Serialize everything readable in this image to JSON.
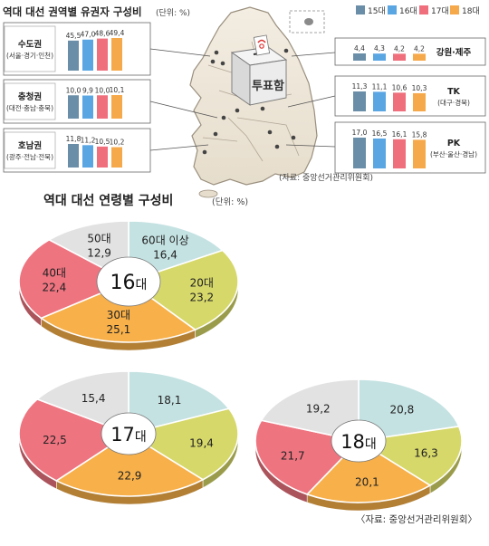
{
  "regional": {
    "title": "역대 대선 권역별 유권자 구성비",
    "unit": "(단위: %)",
    "source": "(자료: 중앙선거관리위원회)",
    "ballot_box_label": "투표함",
    "legend": [
      {
        "label": "15대",
        "color": "#6b8ea8"
      },
      {
        "label": "16대",
        "color": "#5aa6e3"
      },
      {
        "label": "17대",
        "color": "#ef6f7d"
      },
      {
        "label": "18대",
        "color": "#f6a94a"
      }
    ]
  },
  "age": {
    "title": "역대 대선 연령별 구성비",
    "unit": "(단위: %)",
    "source": "〈자료: 중앙선거관리위원회〉",
    "colors": {
      "60": "#c5e2e2",
      "20": "#d6d86a",
      "30": "#f7b04a",
      "40": "#ee7480",
      "50": "#e2e2e2"
    }
  },
  "chart_data": [
    {
      "type": "bar",
      "region": "수도권",
      "sub": "(서울·경기·인천)",
      "categories": [
        "15대",
        "16대",
        "17대",
        "18대"
      ],
      "values": [
        45.5,
        47.0,
        48.6,
        49.4
      ],
      "labels": [
        "45,5",
        "47,0",
        "48,6",
        "49,4"
      ]
    },
    {
      "type": "bar",
      "region": "충청권",
      "sub": "(대전·충남·충북)",
      "categories": [
        "15대",
        "16대",
        "17대",
        "18대"
      ],
      "values": [
        10.0,
        9.9,
        10.0,
        10.1
      ],
      "labels": [
        "10,0",
        "9,9",
        "10,0",
        "10,1"
      ]
    },
    {
      "type": "bar",
      "region": "호남권",
      "sub": "(광주·전남·전북)",
      "categories": [
        "15대",
        "16대",
        "17대",
        "18대"
      ],
      "values": [
        11.8,
        11.2,
        10.5,
        10.2
      ],
      "labels": [
        "11,8",
        "11,2",
        "10,5",
        "10,2"
      ]
    },
    {
      "type": "bar",
      "region": "강원·제주",
      "sub": "",
      "categories": [
        "15대",
        "16대",
        "17대",
        "18대"
      ],
      "values": [
        4.4,
        4.3,
        4.2,
        4.2
      ],
      "labels": [
        "4,4",
        "4,3",
        "4,2",
        "4,2"
      ]
    },
    {
      "type": "bar",
      "region": "TK",
      "sub": "(대구·경북)",
      "categories": [
        "15대",
        "16대",
        "17대",
        "18대"
      ],
      "values": [
        11.3,
        11.1,
        10.6,
        10.3
      ],
      "labels": [
        "11,3",
        "11,1",
        "10,6",
        "10,3"
      ]
    },
    {
      "type": "bar",
      "region": "PK",
      "sub": "(부산·울산·경남)",
      "categories": [
        "15대",
        "16대",
        "17대",
        "18대"
      ],
      "values": [
        17.0,
        16.5,
        16.1,
        15.8
      ],
      "labels": [
        "17,0",
        "16,5",
        "16,1",
        "15,8"
      ]
    },
    {
      "type": "pie",
      "center_num": "16",
      "center_suffix": "대",
      "slices": [
        {
          "key": "60",
          "label": "60대 이상",
          "value": 16.4,
          "text": "16,4"
        },
        {
          "key": "20",
          "label": "20대",
          "value": 23.2,
          "text": "23,2"
        },
        {
          "key": "30",
          "label": "30대",
          "value": 25.1,
          "text": "25,1"
        },
        {
          "key": "40",
          "label": "40대",
          "value": 22.4,
          "text": "22,4"
        },
        {
          "key": "50",
          "label": "50대",
          "value": 12.9,
          "text": "12,9"
        }
      ]
    },
    {
      "type": "pie",
      "center_num": "17",
      "center_suffix": "대",
      "slices": [
        {
          "key": "60",
          "label": "",
          "value": 18.1,
          "text": "18,1"
        },
        {
          "key": "20",
          "label": "",
          "value": 19.4,
          "text": "19,4"
        },
        {
          "key": "30",
          "label": "",
          "value": 22.9,
          "text": "22,9"
        },
        {
          "key": "40",
          "label": "",
          "value": 22.5,
          "text": "22,5"
        },
        {
          "key": "50",
          "label": "",
          "value": 15.4,
          "text": "15,4"
        }
      ]
    },
    {
      "type": "pie",
      "center_num": "18",
      "center_suffix": "대",
      "slices": [
        {
          "key": "60",
          "label": "",
          "value": 20.8,
          "text": "20,8"
        },
        {
          "key": "20",
          "label": "",
          "value": 16.3,
          "text": "16,3"
        },
        {
          "key": "30",
          "label": "",
          "value": 20.1,
          "text": "20,1"
        },
        {
          "key": "40",
          "label": "",
          "value": 21.7,
          "text": "21,7"
        },
        {
          "key": "50",
          "label": "",
          "value": 19.2,
          "text": "19,2"
        }
      ]
    }
  ]
}
